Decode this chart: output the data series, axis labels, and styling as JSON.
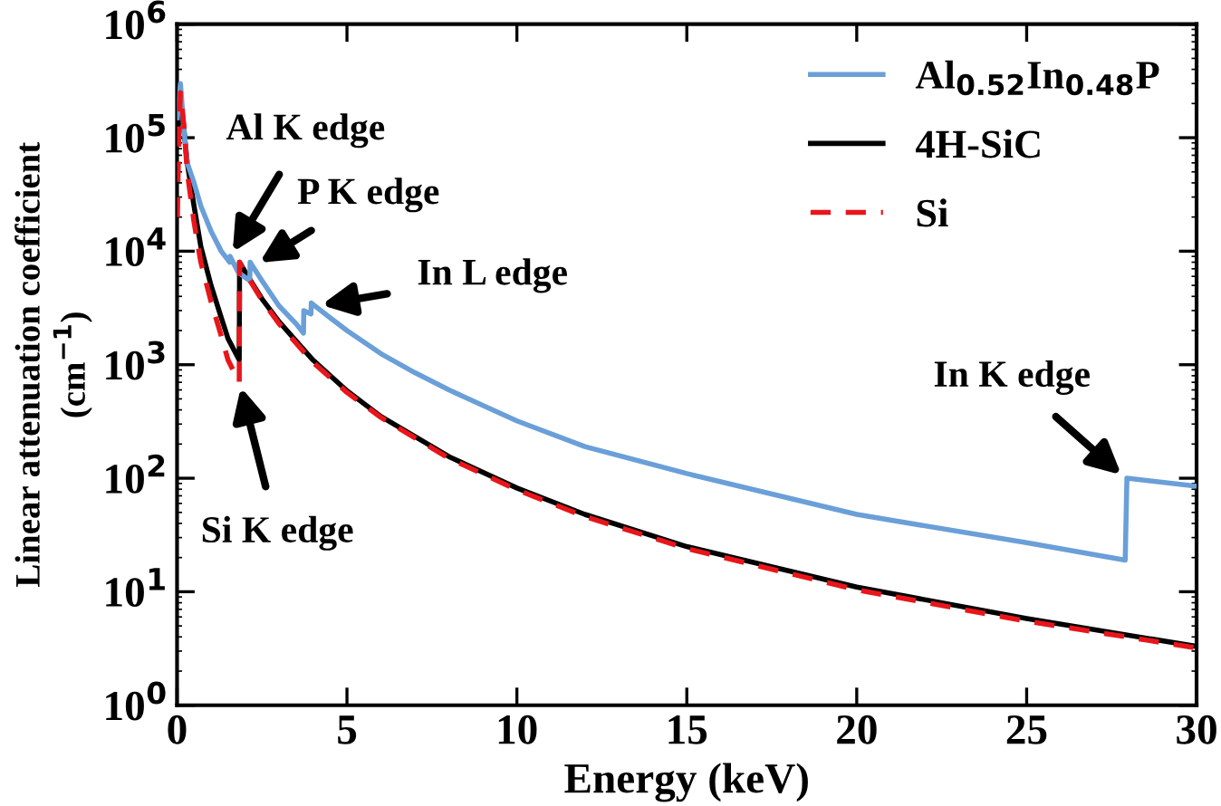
{
  "chart_data": {
    "type": "line",
    "xlabel": "Energy (keV)",
    "ylabel": "Linear attenuation coefficient\n(cm$^{−1}$)",
    "xlim": [
      0,
      30
    ],
    "xticks": [
      0,
      5,
      10,
      15,
      20,
      25,
      30
    ],
    "ylim": [
      1,
      1000000
    ],
    "yticks": [
      {
        "value": 1,
        "label": "10$^{0}$"
      },
      {
        "value": 10,
        "label": "10$^{1}$"
      },
      {
        "value": 100,
        "label": "10$^{2}$"
      },
      {
        "value": 1000,
        "label": "10$^{3}$"
      },
      {
        "value": 10000,
        "label": "10$^{4}$"
      },
      {
        "value": 100000,
        "label": "10$^{5}$"
      },
      {
        "value": 1000000,
        "label": "10$^{6}$"
      }
    ],
    "log": "y",
    "grid": false,
    "legend": "top right",
    "series": [
      {
        "name": "Al$_{0.52}$In$_{0.48}$P",
        "color": "#6a9fd8",
        "line_style": "solid",
        "x": [
          0.01,
          0.1,
          0.2,
          0.3,
          0.5,
          0.7,
          1.0,
          1.3,
          1.55,
          1.56,
          1.8,
          2.14,
          2.15,
          2.5,
          3.0,
          3.5,
          3.72,
          3.73,
          3.94,
          3.95,
          4.0,
          4.5,
          5,
          6,
          7,
          8,
          10,
          12,
          15,
          20,
          25,
          27.9,
          27.95,
          30
        ],
        "values": [
          150000,
          300000,
          120000,
          60000,
          40000,
          25000,
          15000,
          10000,
          8000,
          9000,
          6500,
          5500,
          8000,
          5500,
          3300,
          2300,
          1900,
          3000,
          2800,
          3500,
          3400,
          2600,
          2000,
          1250,
          850,
          600,
          320,
          190,
          110,
          48,
          27,
          19,
          100,
          85
        ]
      },
      {
        "name": "4H-SiC",
        "color": "#000000",
        "line_style": "solid",
        "x": [
          0.01,
          0.05,
          0.1,
          0.2,
          0.3,
          0.5,
          0.7,
          1.0,
          1.3,
          1.5,
          1.83,
          1.84,
          2.0,
          2.5,
          3,
          4,
          5,
          6,
          8,
          10,
          12,
          15,
          20,
          25,
          30
        ],
        "values": [
          100000,
          150000,
          230000,
          120000,
          60000,
          25000,
          11000,
          5000,
          2600,
          1700,
          1100,
          8000,
          6600,
          3800,
          2400,
          1100,
          590,
          350,
          155,
          82,
          48,
          25,
          11,
          5.8,
          3.3
        ]
      },
      {
        "name": "Si",
        "color": "#e8161b",
        "line_style": "dashed",
        "x": [
          0.01,
          0.05,
          0.1,
          0.2,
          0.3,
          0.5,
          0.7,
          1.0,
          1.3,
          1.5,
          1.83,
          1.84,
          2.0,
          2.5,
          3,
          4,
          5,
          6,
          8,
          10,
          12,
          15,
          20,
          25,
          30
        ],
        "values": [
          20000,
          100000,
          250000,
          130000,
          50000,
          18000,
          8000,
          3600,
          1800,
          1100,
          700,
          8000,
          6500,
          3700,
          2300,
          1050,
          570,
          343,
          150,
          79,
          46,
          24,
          10.4,
          5.5,
          3.2
        ]
      }
    ],
    "annotations": [
      {
        "text": "Al K edge",
        "x": 1.56,
        "y": 9000
      },
      {
        "text": "P K edge",
        "x": 2.3,
        "y": 7500
      },
      {
        "text": "In L edge",
        "x": 4.1,
        "y": 3300
      },
      {
        "text": "In K edge",
        "x": 27.9,
        "y": 100
      },
      {
        "text": "Si K edge",
        "x": 1.84,
        "y": 700
      }
    ]
  }
}
